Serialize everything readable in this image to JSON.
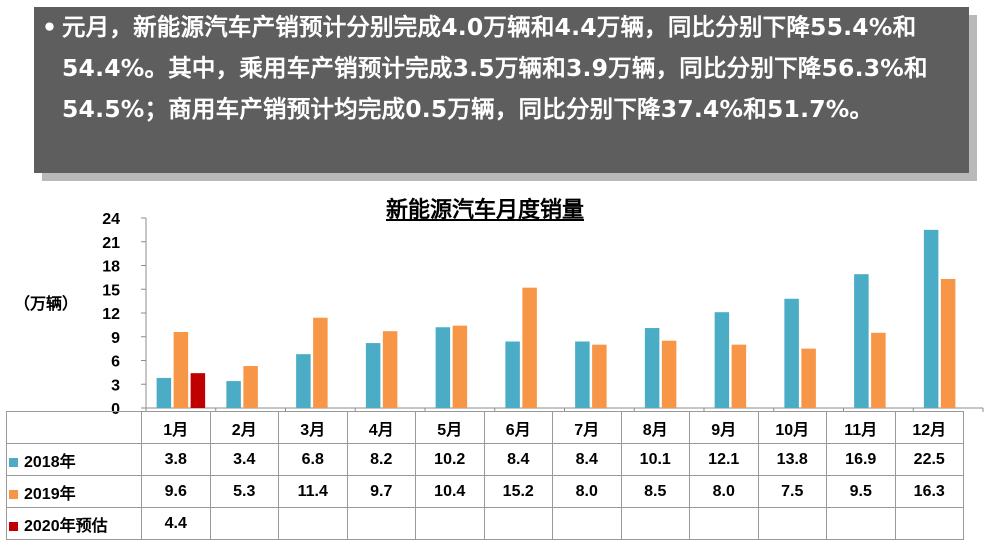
{
  "banner": {
    "bullet": "•",
    "text": "元月，新能源汽车产销预计分别完成4.0万辆和4.4万辆，同比分别下降55.4%和54.4%。其中，乘用车产销预计完成3.5万辆和3.9万辆，同比分别下降56.3%和54.5%；商用车产销预计均完成0.5万辆，同比分别下降37.4%和51.7%。"
  },
  "chart_data": {
    "type": "bar",
    "title": "新能源汽车月度销量",
    "ylabel": "（万辆）",
    "ylim": [
      0,
      24
    ],
    "yticks": [
      "0",
      "3",
      "6",
      "9",
      "12",
      "15",
      "18",
      "21",
      "24"
    ],
    "categories": [
      "1月",
      "2月",
      "3月",
      "4月",
      "5月",
      "6月",
      "7月",
      "8月",
      "9月",
      "10月",
      "11月",
      "12月"
    ],
    "series": [
      {
        "name": "2018年",
        "color": "#4bacc6",
        "values": [
          3.8,
          3.4,
          6.8,
          8.2,
          10.2,
          8.4,
          8.4,
          10.1,
          12.1,
          13.8,
          16.9,
          22.5
        ],
        "labels": [
          "3.8",
          "3.4",
          "6.8",
          "8.2",
          "10.2",
          "8.4",
          "8.4",
          "10.1",
          "12.1",
          "13.8",
          "16.9",
          "22.5"
        ]
      },
      {
        "name": "2019年",
        "color": "#f79646",
        "values": [
          9.6,
          5.3,
          11.4,
          9.7,
          10.4,
          15.2,
          8.0,
          8.5,
          8.0,
          7.5,
          9.5,
          16.3
        ],
        "labels": [
          "9.6",
          "5.3",
          "11.4",
          "9.7",
          "10.4",
          "15.2",
          "8.0",
          "8.5",
          "8.0",
          "7.5",
          "9.5",
          "16.3"
        ]
      },
      {
        "name": "2020年预估",
        "color": "#c00000",
        "values": [
          4.4,
          null,
          null,
          null,
          null,
          null,
          null,
          null,
          null,
          null,
          null,
          null
        ],
        "labels": [
          "4.4",
          "",
          "",
          "",
          "",
          "",
          "",
          "",
          "",
          "",
          "",
          ""
        ]
      }
    ],
    "grid": false,
    "legend": "data-table"
  }
}
